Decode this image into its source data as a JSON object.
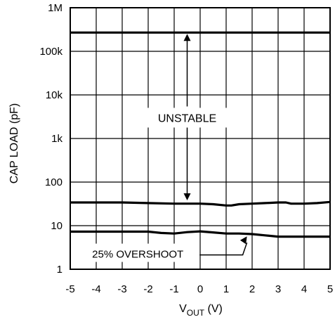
{
  "chart_data": {
    "type": "line",
    "title": "",
    "xlabel": {
      "main": "V",
      "sub": "OUT",
      "unit": " (V)"
    },
    "ylabel": "CAP LOAD (pF)",
    "xlim": [
      -5,
      5
    ],
    "ylim": [
      1,
      1000000
    ],
    "yscale": "log",
    "grid": true,
    "x_ticks": [
      {
        "value": -5,
        "label": "-5"
      },
      {
        "value": -4,
        "label": "-4"
      },
      {
        "value": -3,
        "label": "-3"
      },
      {
        "value": -2,
        "label": "-2"
      },
      {
        "value": -1,
        "label": "-1"
      },
      {
        "value": 0,
        "label": "0"
      },
      {
        "value": 1,
        "label": "1"
      },
      {
        "value": 2,
        "label": "2"
      },
      {
        "value": 3,
        "label": "3"
      },
      {
        "value": 4,
        "label": "4"
      },
      {
        "value": 5,
        "label": "5"
      }
    ],
    "y_ticks": [
      {
        "value": 1,
        "label": "1"
      },
      {
        "value": 10,
        "label": "10"
      },
      {
        "value": 100,
        "label": "100"
      },
      {
        "value": 1000,
        "label": "1k"
      },
      {
        "value": 10000,
        "label": "10k"
      },
      {
        "value": 100000,
        "label": "100k"
      },
      {
        "value": 1000000,
        "label": "1M"
      }
    ],
    "series": [
      {
        "x": [
          -5,
          5
        ],
        "values": [
          270000,
          270000
        ]
      },
      {
        "x": [
          -5,
          -3,
          -2,
          -1,
          0,
          0.5,
          1,
          1.2,
          1.5,
          2,
          2.5,
          3,
          3.3,
          3.5,
          4,
          4.5,
          5
        ],
        "values": [
          34,
          34,
          33,
          32,
          32,
          31,
          29,
          29,
          31,
          32,
          33,
          34,
          34,
          32,
          32,
          33,
          35
        ]
      },
      {
        "x": [
          -5,
          -2,
          -1.5,
          -1,
          -0.5,
          0,
          0.5,
          1,
          1.5,
          2,
          2.5,
          3,
          5
        ],
        "values": [
          7.3,
          7.3,
          6.8,
          6.6,
          7.1,
          7.4,
          7.0,
          6.6,
          6.6,
          6.4,
          6.0,
          5.6,
          5.6
        ]
      }
    ],
    "annotations": [
      {
        "text": "UNSTABLE",
        "x": -0.5,
        "y": 3000,
        "arrow_from": 270000,
        "arrow_to": 34
      },
      {
        "text": "25% OVERSHOOT",
        "x": -2.4,
        "y": 2.3,
        "arrow_target_x": 1.8,
        "arrow_target_y": 6.6
      }
    ]
  }
}
